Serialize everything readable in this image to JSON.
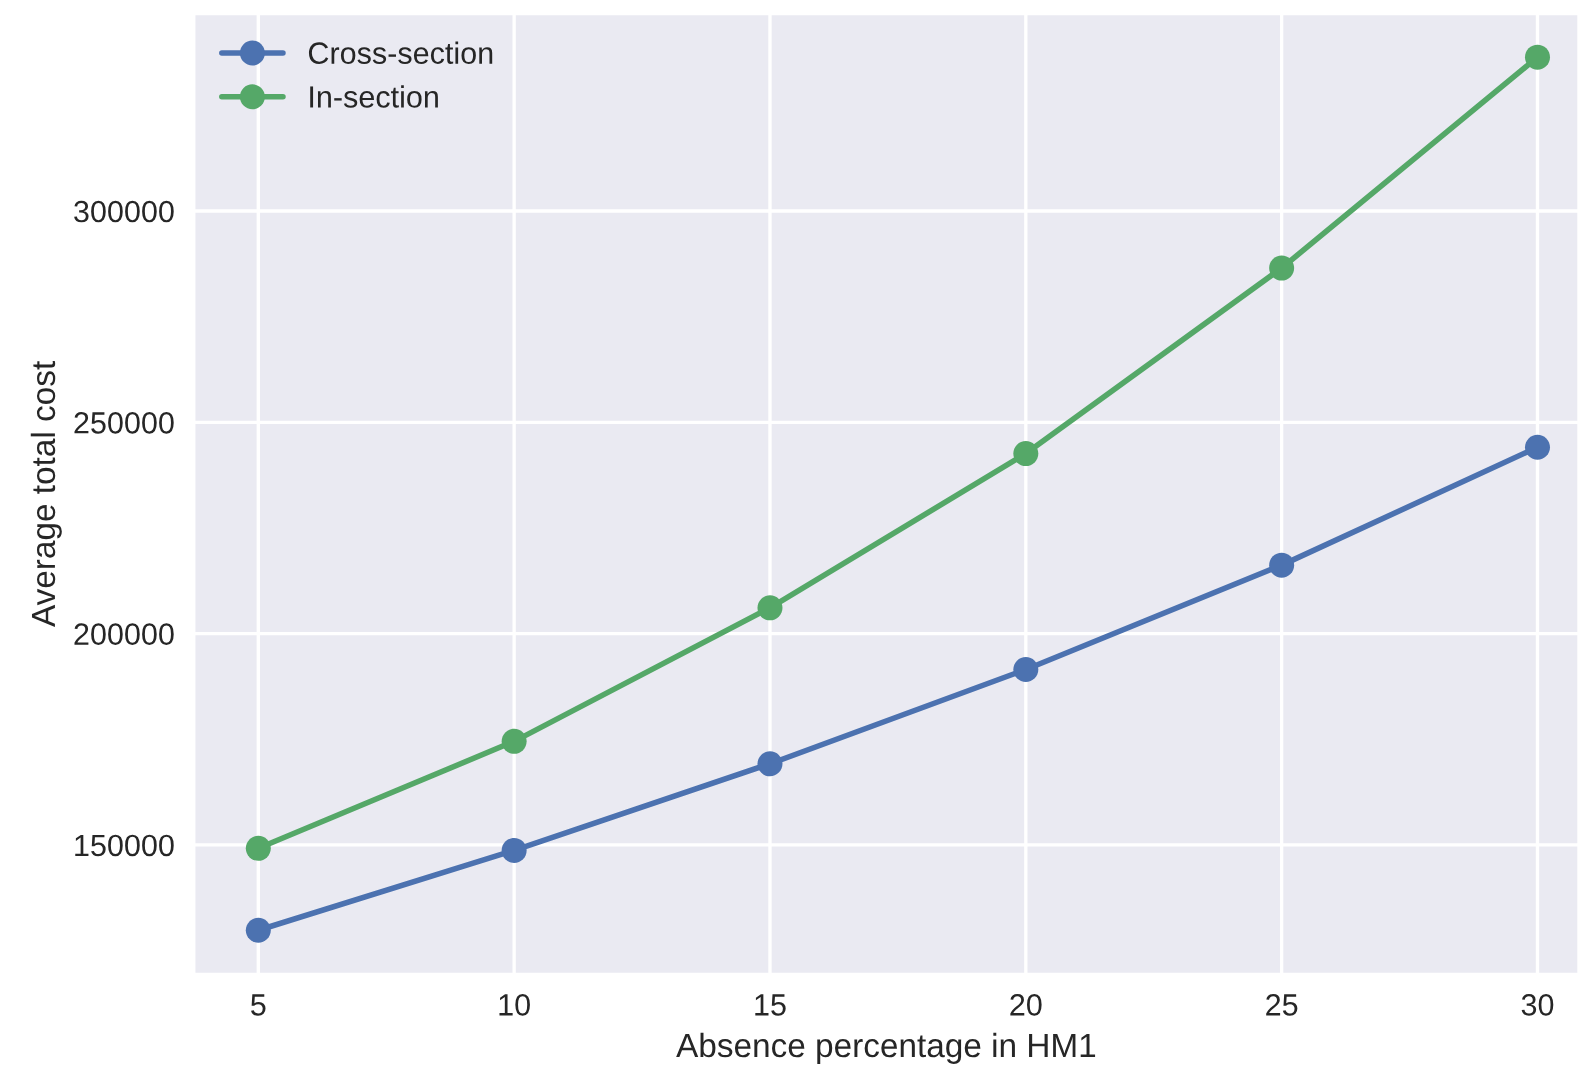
{
  "chart_data": {
    "type": "line",
    "xlabel": "Absence percentage in HM1",
    "ylabel": "Average total cost",
    "x": [
      5,
      10,
      15,
      20,
      25,
      30
    ],
    "series": [
      {
        "name": "Cross-section",
        "color": "#4c72b0",
        "values": [
          129800,
          148700,
          169200,
          191500,
          216200,
          244100
        ]
      },
      {
        "name": "In-section",
        "color": "#55a868",
        "values": [
          149200,
          174500,
          206100,
          242600,
          286500,
          336400
        ]
      }
    ],
    "xlim": [
      3.75,
      30.8
    ],
    "xticks": [
      5,
      10,
      15,
      20,
      25,
      30
    ],
    "ylim": [
      119500,
      346600
    ],
    "yticks": [
      150000,
      200000,
      250000,
      300000
    ],
    "grid": true,
    "legend": "top left",
    "marker": "circle",
    "line_style": "solid"
  }
}
